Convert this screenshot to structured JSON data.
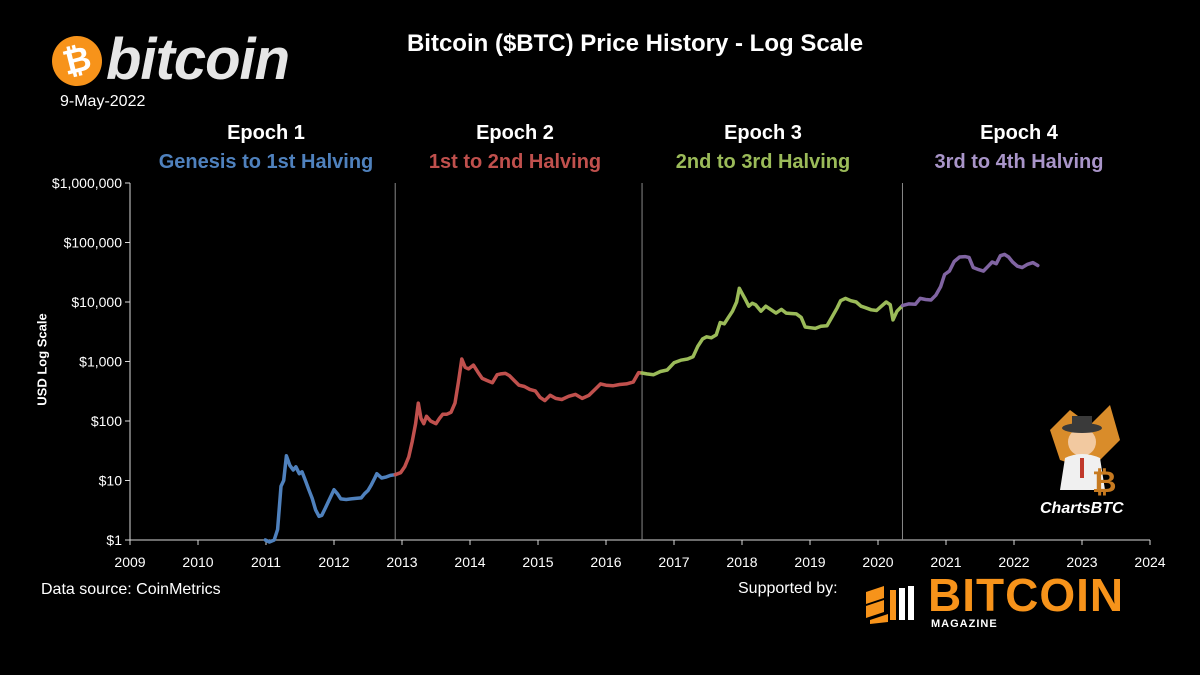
{
  "header": {
    "logo_symbol": "₿",
    "logo_word": "bitcoin",
    "date": "9-May-2022",
    "title": "Bitcoin ($BTC) Price History - Log Scale"
  },
  "epochs": [
    {
      "name": "Epoch 1",
      "desc": "Genesis to 1st Halving",
      "color": "#4f81bd"
    },
    {
      "name": "Epoch 2",
      "desc": "1st  to 2nd Halving",
      "color": "#c0504d"
    },
    {
      "name": "Epoch 3",
      "desc": "2nd to 3rd Halving",
      "color": "#9bbb59"
    },
    {
      "name": "Epoch 4",
      "desc": "3rd to 4th Halving",
      "color": "#8064a2"
    }
  ],
  "footer": {
    "source": "Data source: CoinMetrics",
    "supported": "Supported by:",
    "sponsor_word": "BITCOIN",
    "sponsor_sub": "MAGAZINE",
    "mascot_label": "ChartsBTC"
  },
  "colors": {
    "background": "#000000",
    "sponsor": "#f7931a",
    "halving_line": "#888888"
  },
  "chart_data": {
    "type": "line",
    "title": "Bitcoin ($BTC) Price History - Log Scale",
    "xlabel": "",
    "ylabel": "USD Log Scale",
    "yscale": "log",
    "ylim": [
      1,
      1000000
    ],
    "xlim": [
      2009,
      2024
    ],
    "xticks": [
      "2009",
      "2010",
      "2011",
      "2012",
      "2013",
      "2014",
      "2015",
      "2016",
      "2017",
      "2018",
      "2019",
      "2020",
      "2021",
      "2022",
      "2023",
      "2024"
    ],
    "yticks": [
      "$1",
      "$10",
      "$100",
      "$1,000",
      "$10,000",
      "$100,000",
      "$1,000,000"
    ],
    "ytick_values": [
      1,
      10,
      100,
      1000,
      10000,
      100000,
      1000000
    ],
    "halvings": [
      2012.9,
      2016.53,
      2020.36
    ],
    "grid": false,
    "series": [
      {
        "epoch": 1,
        "color": "#4f81bd",
        "x": [
          2010.99,
          2011.05,
          2011.12,
          2011.17,
          2011.22,
          2011.26,
          2011.3,
          2011.35,
          2011.4,
          2011.44,
          2011.49,
          2011.53,
          2011.58,
          2011.63,
          2011.68,
          2011.73,
          2011.78,
          2011.82,
          2011.87,
          2011.92,
          2012.0,
          2012.05,
          2012.1,
          2012.18,
          2012.25,
          2012.32,
          2012.4,
          2012.45,
          2012.5,
          2012.55,
          2012.6,
          2012.63,
          2012.7,
          2012.77,
          2012.83,
          2012.9
        ],
        "y": [
          1,
          0.9,
          1.0,
          1.5,
          8,
          10,
          26,
          18,
          15,
          17,
          13,
          14,
          10,
          7,
          5,
          3.2,
          2.5,
          2.6,
          3.4,
          4.5,
          7,
          6,
          4.9,
          4.8,
          4.9,
          5.0,
          5.1,
          6,
          6.8,
          8.5,
          11,
          13,
          11,
          11.5,
          12.2,
          12.5
        ]
      },
      {
        "epoch": 2,
        "color": "#c0504d",
        "x": [
          2012.9,
          2012.98,
          2013.04,
          2013.1,
          2013.15,
          2013.2,
          2013.24,
          2013.28,
          2013.32,
          2013.36,
          2013.42,
          2013.5,
          2013.55,
          2013.6,
          2013.66,
          2013.72,
          2013.78,
          2013.83,
          2013.88,
          2013.93,
          2013.98,
          2014.05,
          2014.12,
          2014.18,
          2014.25,
          2014.33,
          2014.4,
          2014.45,
          2014.52,
          2014.58,
          2014.65,
          2014.72,
          2014.8,
          2014.88,
          2014.96,
          2015.03,
          2015.1,
          2015.18,
          2015.26,
          2015.35,
          2015.45,
          2015.55,
          2015.65,
          2015.75,
          2015.85,
          2015.92,
          2016.0,
          2016.1,
          2016.2,
          2016.3,
          2016.4,
          2016.48,
          2016.53
        ],
        "y": [
          12.5,
          13.5,
          17,
          25,
          45,
          90,
          200,
          110,
          90,
          120,
          100,
          90,
          110,
          130,
          130,
          140,
          200,
          450,
          1100,
          800,
          750,
          870,
          650,
          520,
          480,
          440,
          600,
          620,
          630,
          580,
          480,
          400,
          380,
          340,
          320,
          250,
          220,
          270,
          240,
          230,
          260,
          280,
          240,
          270,
          350,
          420,
          400,
          390,
          410,
          420,
          450,
          650,
          640
        ]
      },
      {
        "epoch": 3,
        "color": "#9bbb59",
        "x": [
          2016.53,
          2016.6,
          2016.7,
          2016.8,
          2016.9,
          2017.0,
          2017.1,
          2017.2,
          2017.28,
          2017.35,
          2017.42,
          2017.48,
          2017.55,
          2017.62,
          2017.68,
          2017.74,
          2017.8,
          2017.86,
          2017.92,
          2017.96,
          2018.0,
          2018.05,
          2018.1,
          2018.15,
          2018.2,
          2018.28,
          2018.35,
          2018.42,
          2018.5,
          2018.58,
          2018.65,
          2018.72,
          2018.8,
          2018.87,
          2018.93,
          2019.0,
          2019.08,
          2019.16,
          2019.25,
          2019.32,
          2019.4,
          2019.45,
          2019.52,
          2019.6,
          2019.68,
          2019.75,
          2019.82,
          2019.9,
          2019.98,
          2020.05,
          2020.12,
          2020.18,
          2020.22,
          2020.28,
          2020.36
        ],
        "y": [
          640,
          620,
          600,
          680,
          720,
          950,
          1050,
          1100,
          1200,
          1800,
          2400,
          2600,
          2500,
          2800,
          4500,
          4300,
          5500,
          7000,
          10000,
          17000,
          14000,
          11000,
          8500,
          9500,
          9000,
          7000,
          8500,
          7500,
          6500,
          7500,
          6500,
          6400,
          6300,
          5500,
          3800,
          3700,
          3600,
          3900,
          4000,
          5500,
          8000,
          10500,
          11500,
          10500,
          10000,
          8500,
          8000,
          7400,
          7200,
          8500,
          10000,
          9000,
          5000,
          7000,
          8700
        ]
      },
      {
        "epoch": 4,
        "color": "#8064a2",
        "x": [
          2020.36,
          2020.45,
          2020.55,
          2020.62,
          2020.7,
          2020.78,
          2020.85,
          2020.92,
          2020.98,
          2021.05,
          2021.12,
          2021.2,
          2021.28,
          2021.34,
          2021.4,
          2021.48,
          2021.55,
          2021.62,
          2021.68,
          2021.74,
          2021.8,
          2021.86,
          2021.92,
          2021.98,
          2022.05,
          2022.12,
          2022.2,
          2022.28,
          2022.35
        ],
        "y": [
          8700,
          9300,
          9200,
          11500,
          11000,
          10800,
          13000,
          18000,
          29000,
          33000,
          48000,
          57000,
          58000,
          56000,
          38000,
          35000,
          33000,
          40000,
          47000,
          44000,
          60000,
          63000,
          57000,
          47000,
          40000,
          38000,
          43000,
          46000,
          41000
        ]
      }
    ]
  }
}
